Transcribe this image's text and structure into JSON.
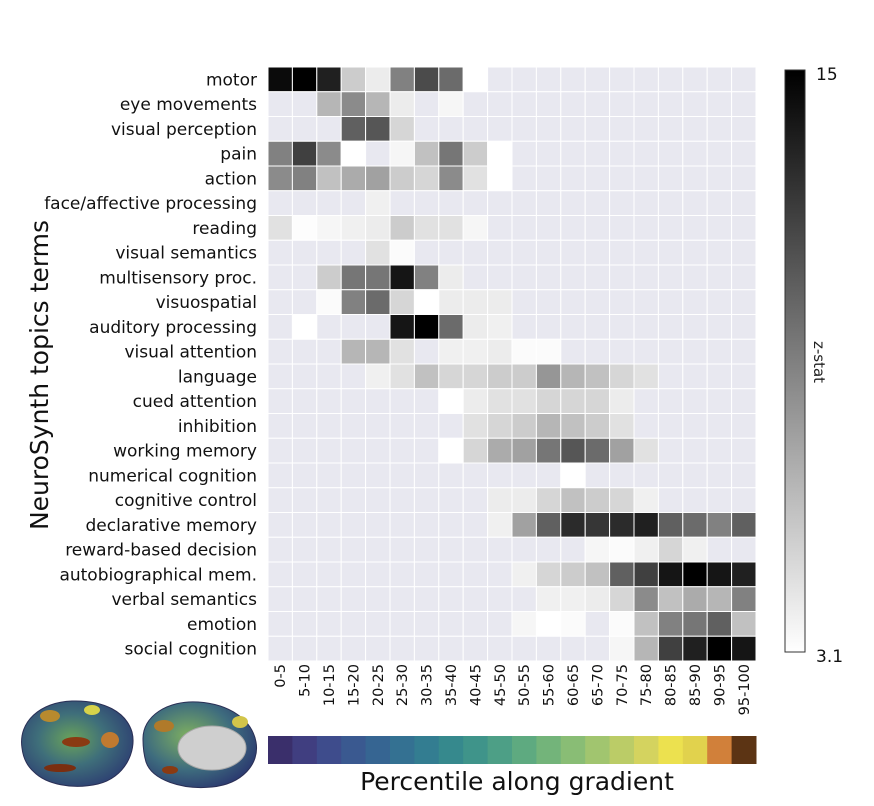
{
  "chart_data": {
    "type": "heatmap",
    "ylabel": "NeuroSynth topics terms",
    "xlabel": "Percentile along gradient",
    "rows": [
      "motor",
      "eye movements",
      "visual perception",
      "pain",
      "action",
      "face/affective processing",
      "reading",
      "visual semantics",
      "multisensory proc.",
      "visuospatial",
      "auditory processing",
      "visual attention",
      "language",
      "cued attention",
      "inhibition",
      "working memory",
      "numerical cognition",
      "cognitive control",
      "declarative memory",
      "reward-based decision",
      "autobiographical mem.",
      "verbal semantics",
      "emotion",
      "social cognition"
    ],
    "columns": [
      "0-5",
      "5-10",
      "10-15",
      "15-20",
      "20-25",
      "25-30",
      "30-35",
      "35-40",
      "40-45",
      "45-50",
      "50-55",
      "55-60",
      "60-65",
      "65-70",
      "70-75",
      "75-80",
      "80-85",
      "85-90",
      "90-95",
      "95-100"
    ],
    "values": [
      [
        14.5,
        15,
        13.5,
        5.5,
        4,
        9,
        11.5,
        10,
        3.1,
        null,
        null,
        null,
        null,
        null,
        null,
        null,
        null,
        null,
        null,
        null
      ],
      [
        null,
        null,
        6.5,
        8.5,
        6.5,
        4,
        null,
        3.5,
        null,
        null,
        null,
        null,
        null,
        null,
        null,
        null,
        null,
        null,
        null,
        null
      ],
      [
        null,
        null,
        null,
        10.5,
        11,
        5,
        null,
        null,
        null,
        null,
        null,
        null,
        null,
        null,
        null,
        null,
        null,
        null,
        null,
        null
      ],
      [
        9,
        12,
        8.5,
        3.1,
        null,
        3.5,
        6,
        9.5,
        5.5,
        3.1,
        null,
        null,
        null,
        null,
        null,
        null,
        null,
        null,
        null,
        null
      ],
      [
        8.5,
        9,
        6,
        7,
        7.5,
        5.5,
        5,
        8.5,
        4.5,
        3.1,
        null,
        null,
        null,
        null,
        null,
        null,
        null,
        null,
        null,
        null
      ],
      [
        null,
        null,
        null,
        null,
        3.8,
        null,
        null,
        null,
        null,
        null,
        null,
        null,
        null,
        null,
        null,
        null,
        null,
        null,
        null,
        null
      ],
      [
        4.5,
        3.2,
        3.5,
        3.8,
        4,
        5.5,
        4.5,
        4.5,
        3.5,
        null,
        null,
        null,
        null,
        null,
        null,
        null,
        null,
        null,
        null,
        null
      ],
      [
        null,
        null,
        null,
        null,
        4.5,
        3.3,
        null,
        null,
        null,
        null,
        null,
        null,
        null,
        null,
        null,
        null,
        null,
        null,
        null,
        null
      ],
      [
        null,
        null,
        5.5,
        9.5,
        9.5,
        14,
        9,
        4,
        null,
        null,
        null,
        null,
        null,
        null,
        null,
        null,
        null,
        null,
        null,
        null
      ],
      [
        null,
        null,
        3.3,
        9,
        10,
        5,
        3.1,
        4,
        4,
        4,
        null,
        null,
        null,
        null,
        null,
        null,
        null,
        null,
        null,
        null
      ],
      [
        null,
        3.1,
        null,
        null,
        null,
        14,
        15,
        10,
        4,
        3.8,
        null,
        null,
        null,
        null,
        null,
        null,
        null,
        null,
        null,
        null
      ],
      [
        null,
        null,
        null,
        6.5,
        6.5,
        4.5,
        null,
        3.8,
        3.8,
        4,
        3.3,
        3.3,
        null,
        null,
        null,
        null,
        null,
        null,
        null,
        null
      ],
      [
        null,
        null,
        null,
        null,
        3.8,
        4.5,
        6,
        5,
        5,
        5.5,
        5.5,
        8,
        6.5,
        6,
        5,
        4.5,
        null,
        null,
        null,
        null
      ],
      [
        null,
        null,
        null,
        null,
        null,
        null,
        null,
        3.1,
        4,
        4.5,
        4.5,
        5,
        5,
        5,
        4,
        null,
        null,
        null,
        null,
        null
      ],
      [
        null,
        null,
        null,
        null,
        null,
        null,
        null,
        null,
        4.5,
        5,
        5.5,
        6.5,
        6,
        5.5,
        4.5,
        null,
        null,
        null,
        null,
        null
      ],
      [
        null,
        null,
        null,
        null,
        null,
        null,
        null,
        3.1,
        5,
        7,
        7.5,
        9.5,
        11,
        10,
        7.5,
        4.5,
        null,
        null,
        null,
        null
      ],
      [
        null,
        null,
        null,
        null,
        null,
        null,
        null,
        null,
        null,
        null,
        null,
        null,
        3.1,
        null,
        null,
        null,
        null,
        null,
        null,
        null
      ],
      [
        null,
        null,
        null,
        null,
        null,
        null,
        null,
        null,
        null,
        4,
        4,
        5,
        6,
        5.5,
        5,
        3.8,
        null,
        null,
        null,
        null
      ],
      [
        null,
        null,
        null,
        null,
        null,
        null,
        null,
        null,
        null,
        3.8,
        7.5,
        10.5,
        13,
        12.5,
        13,
        13.5,
        10.5,
        10,
        9,
        10.5
      ],
      [
        null,
        null,
        null,
        null,
        null,
        null,
        null,
        null,
        null,
        null,
        null,
        null,
        null,
        3.5,
        3.3,
        3.8,
        5,
        3.8,
        null,
        null
      ],
      [
        null,
        null,
        null,
        null,
        null,
        null,
        null,
        null,
        null,
        null,
        3.8,
        5,
        5.5,
        6,
        10.5,
        12,
        14,
        15,
        14,
        13.5
      ],
      [
        null,
        null,
        null,
        null,
        null,
        null,
        null,
        null,
        null,
        null,
        null,
        3.8,
        3.8,
        4,
        5,
        8.5,
        6,
        7,
        6.5,
        9
      ],
      [
        null,
        null,
        null,
        null,
        null,
        null,
        null,
        null,
        null,
        null,
        3.5,
        3.1,
        3.3,
        null,
        3.3,
        6,
        9,
        9.5,
        10.5,
        6
      ],
      [
        null,
        null,
        null,
        null,
        null,
        null,
        null,
        null,
        null,
        null,
        null,
        null,
        null,
        null,
        3.5,
        6.5,
        12,
        13.5,
        15,
        14
      ]
    ],
    "colorbar": {
      "min": 3.1,
      "max": 15,
      "min_label": "3.1",
      "max_label": "15",
      "label": "z-stat"
    },
    "gradient_colors": [
      "#3a2f6b",
      "#403e80",
      "#3e4c8c",
      "#3a5990",
      "#366592",
      "#347192",
      "#337d91",
      "#36898d",
      "#3f948a",
      "#4d9f86",
      "#5eaa80",
      "#73b47a",
      "#89bd75",
      "#a1c56f",
      "#bbcc67",
      "#d4d35f",
      "#ece14f",
      "#e1d24d",
      "#d1803a",
      "#5c3414"
    ],
    "empty_cell_color": "#e8e8f0",
    "grid": true
  }
}
